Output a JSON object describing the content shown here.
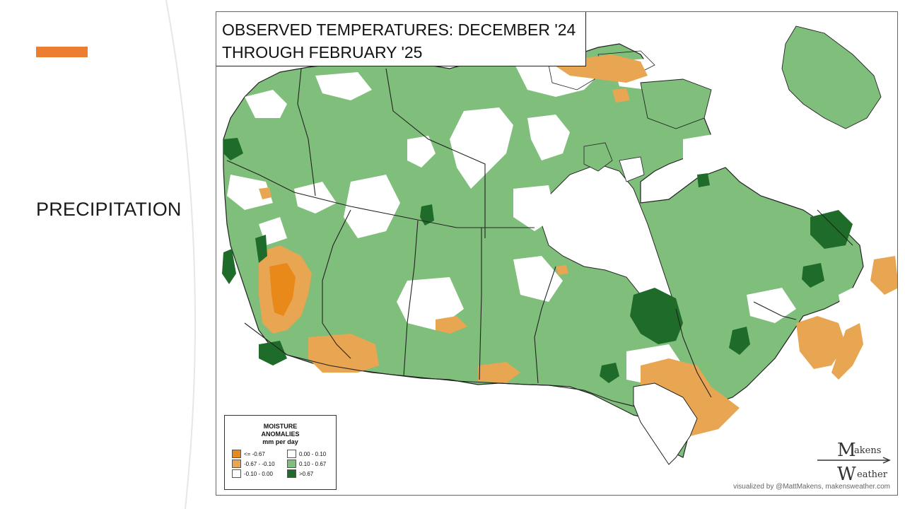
{
  "slide": {
    "heading": "PRECIPITATION",
    "accent_color": "#ED7D31"
  },
  "map": {
    "title_line1": "OBSERVED TEMPERATURES: DECEMBER '24",
    "title_line2": "THROUGH FEBRUARY '25",
    "legend": {
      "title_line1": "MOISTURE",
      "title_line2": "ANOMALIES",
      "title_line3": "mm per day",
      "items": [
        {
          "label": "<= -0.67",
          "color": "#E8891A"
        },
        {
          "label": "0.00 - 0.10",
          "color": "#FFFFFF"
        },
        {
          "label": "-0.67 - -0.10",
          "color": "#E8A552"
        },
        {
          "label": "0.10 - 0.67",
          "color": "#7FBF7B"
        },
        {
          "label": "-0.10 - 0.00",
          "color": "#FFFFFF"
        },
        {
          "label": ">0.67",
          "color": "#1E6B2A"
        }
      ]
    },
    "brand_top": "akens",
    "brand_bottom": "eather",
    "brand_M": "M",
    "brand_W": "W",
    "credit": "visualized by @MattMakens, makensweather.com"
  }
}
